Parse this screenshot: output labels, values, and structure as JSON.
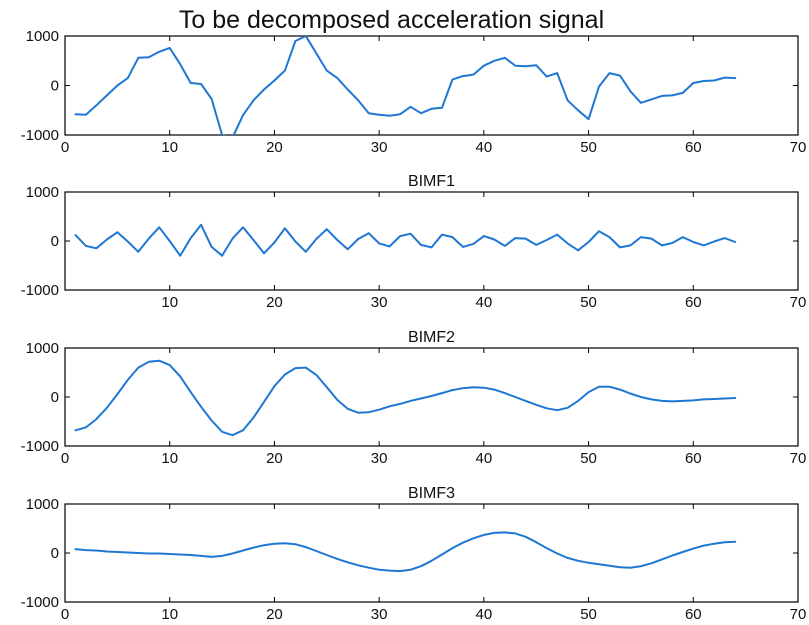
{
  "line_color": "#1f77d4",
  "chart_data": [
    {
      "type": "line",
      "title": "To be decomposed acceleration signal",
      "xlim": [
        0,
        70
      ],
      "ylim": [
        -1000,
        1000
      ],
      "xticks": [
        0,
        10,
        20,
        30,
        40,
        50,
        60,
        70
      ],
      "yticks": [
        -1000,
        0,
        1000
      ],
      "xtick_labels": [
        "0",
        "10",
        "20",
        "30",
        "40",
        "50",
        "60",
        "70"
      ],
      "ytick_labels": [
        "-1000",
        "0",
        "1000"
      ],
      "grid": false,
      "series": [
        {
          "x": [
            1,
            2,
            3,
            4,
            5,
            6,
            7,
            8,
            9,
            10,
            11,
            12,
            13,
            14,
            15,
            16,
            17,
            18,
            19,
            20,
            21,
            22,
            23,
            24,
            25,
            26,
            27,
            28,
            29,
            30,
            31,
            32,
            33,
            34,
            35,
            36,
            37,
            38,
            39,
            40,
            41,
            42,
            43,
            44,
            45,
            46,
            47,
            48,
            49,
            50,
            51,
            52,
            53,
            54,
            55,
            56,
            57,
            58,
            59,
            60,
            61,
            62,
            63,
            64
          ],
          "y": [
            -580,
            -590,
            -400,
            -200,
            0,
            150,
            560,
            570,
            680,
            760,
            430,
            50,
            30,
            -270,
            -1000,
            -1050,
            -600,
            -300,
            -80,
            100,
            300,
            900,
            1000,
            650,
            300,
            150,
            -80,
            -300,
            -560,
            -590,
            -610,
            -580,
            -430,
            -560,
            -470,
            -450,
            120,
            190,
            220,
            400,
            500,
            560,
            400,
            390,
            410,
            180,
            250,
            -300,
            -500,
            -680,
            -20,
            250,
            200,
            -120,
            -350,
            -280,
            -210,
            -200,
            -150,
            50,
            90,
            100,
            160,
            150
          ]
        }
      ]
    },
    {
      "type": "line",
      "title": "BIMF1",
      "xlim": [
        0,
        70
      ],
      "ylim": [
        -1000,
        1000
      ],
      "xticks": [
        0,
        10,
        20,
        30,
        40,
        50,
        60,
        70
      ],
      "yticks": [
        -1000,
        0,
        1000
      ],
      "xtick_labels": [
        "",
        "10",
        "20",
        "30",
        "40",
        "50",
        "60",
        "70"
      ],
      "ytick_labels": [
        "-1000",
        "0",
        "1000"
      ],
      "grid": false,
      "series": [
        {
          "x": [
            1,
            2,
            3,
            4,
            5,
            6,
            7,
            8,
            9,
            10,
            11,
            12,
            13,
            14,
            15,
            16,
            17,
            18,
            19,
            20,
            21,
            22,
            23,
            24,
            25,
            26,
            27,
            28,
            29,
            30,
            31,
            32,
            33,
            34,
            35,
            36,
            37,
            38,
            39,
            40,
            41,
            42,
            43,
            44,
            45,
            46,
            47,
            48,
            49,
            50,
            51,
            52,
            53,
            54,
            55,
            56,
            57,
            58,
            59,
            60,
            61,
            62,
            63,
            64
          ],
          "y": [
            120,
            -100,
            -150,
            30,
            180,
            -10,
            -220,
            50,
            280,
            0,
            -300,
            60,
            330,
            -120,
            -300,
            50,
            280,
            20,
            -250,
            -30,
            260,
            -10,
            -220,
            40,
            240,
            20,
            -170,
            40,
            160,
            -50,
            -110,
            100,
            150,
            -80,
            -130,
            130,
            80,
            -120,
            -60,
            100,
            30,
            -100,
            60,
            50,
            -80,
            20,
            130,
            -50,
            -190,
            -20,
            200,
            80,
            -130,
            -90,
            80,
            50,
            -90,
            -40,
            80,
            -20,
            -90,
            -10,
            60,
            -20
          ]
        }
      ]
    },
    {
      "type": "line",
      "title": "BIMF2",
      "xlim": [
        0,
        70
      ],
      "ylim": [
        -1000,
        1000
      ],
      "xticks": [
        0,
        10,
        20,
        30,
        40,
        50,
        60,
        70
      ],
      "yticks": [
        -1000,
        0,
        1000
      ],
      "xtick_labels": [
        "0",
        "10",
        "20",
        "30",
        "40",
        "50",
        "60",
        "70"
      ],
      "ytick_labels": [
        "-1000",
        "0",
        "1000"
      ],
      "grid": false,
      "series": [
        {
          "x": [
            1,
            2,
            3,
            4,
            5,
            6,
            7,
            8,
            9,
            10,
            11,
            12,
            13,
            14,
            15,
            16,
            17,
            18,
            19,
            20,
            21,
            22,
            23,
            24,
            25,
            26,
            27,
            28,
            29,
            30,
            31,
            32,
            33,
            34,
            35,
            36,
            37,
            38,
            39,
            40,
            41,
            42,
            43,
            44,
            45,
            46,
            47,
            48,
            49,
            50,
            51,
            52,
            53,
            54,
            55,
            56,
            57,
            58,
            59,
            60,
            61,
            62,
            63,
            64
          ],
          "y": [
            -680,
            -620,
            -450,
            -220,
            60,
            350,
            600,
            720,
            740,
            650,
            420,
            100,
            -200,
            -480,
            -710,
            -780,
            -680,
            -420,
            -100,
            220,
            460,
            590,
            600,
            450,
            200,
            -60,
            -240,
            -320,
            -310,
            -260,
            -190,
            -140,
            -80,
            -30,
            20,
            80,
            140,
            180,
            200,
            190,
            150,
            80,
            0,
            -80,
            -160,
            -230,
            -270,
            -220,
            -80,
            100,
            210,
            210,
            150,
            70,
            0,
            -50,
            -80,
            -90,
            -80,
            -70,
            -50,
            -40,
            -30,
            -20
          ]
        }
      ]
    },
    {
      "type": "line",
      "title": "BIMF3",
      "xlim": [
        0,
        70
      ],
      "ylim": [
        -1000,
        1000
      ],
      "xticks": [
        0,
        10,
        20,
        30,
        40,
        50,
        60,
        70
      ],
      "yticks": [
        -1000,
        0,
        1000
      ],
      "xtick_labels": [
        "0",
        "10",
        "20",
        "30",
        "40",
        "50",
        "60",
        "70"
      ],
      "ytick_labels": [
        "-1000",
        "0",
        "1000"
      ],
      "grid": false,
      "series": [
        {
          "x": [
            1,
            2,
            3,
            4,
            5,
            6,
            7,
            8,
            9,
            10,
            11,
            12,
            13,
            14,
            15,
            16,
            17,
            18,
            19,
            20,
            21,
            22,
            23,
            24,
            25,
            26,
            27,
            28,
            29,
            30,
            31,
            32,
            33,
            34,
            35,
            36,
            37,
            38,
            39,
            40,
            41,
            42,
            43,
            44,
            45,
            46,
            47,
            48,
            49,
            50,
            51,
            52,
            53,
            54,
            55,
            56,
            57,
            58,
            59,
            60,
            61,
            62,
            63,
            64
          ],
          "y": [
            80,
            60,
            50,
            30,
            20,
            10,
            0,
            -10,
            -10,
            -20,
            -30,
            -40,
            -60,
            -80,
            -60,
            -10,
            50,
            110,
            160,
            190,
            200,
            180,
            120,
            40,
            -40,
            -120,
            -190,
            -250,
            -300,
            -340,
            -360,
            -370,
            -340,
            -270,
            -160,
            -30,
            100,
            210,
            300,
            370,
            410,
            420,
            400,
            330,
            220,
            100,
            -10,
            -100,
            -160,
            -200,
            -230,
            -260,
            -290,
            -300,
            -270,
            -210,
            -130,
            -50,
            20,
            90,
            150,
            190,
            220,
            230
          ]
        }
      ]
    }
  ]
}
